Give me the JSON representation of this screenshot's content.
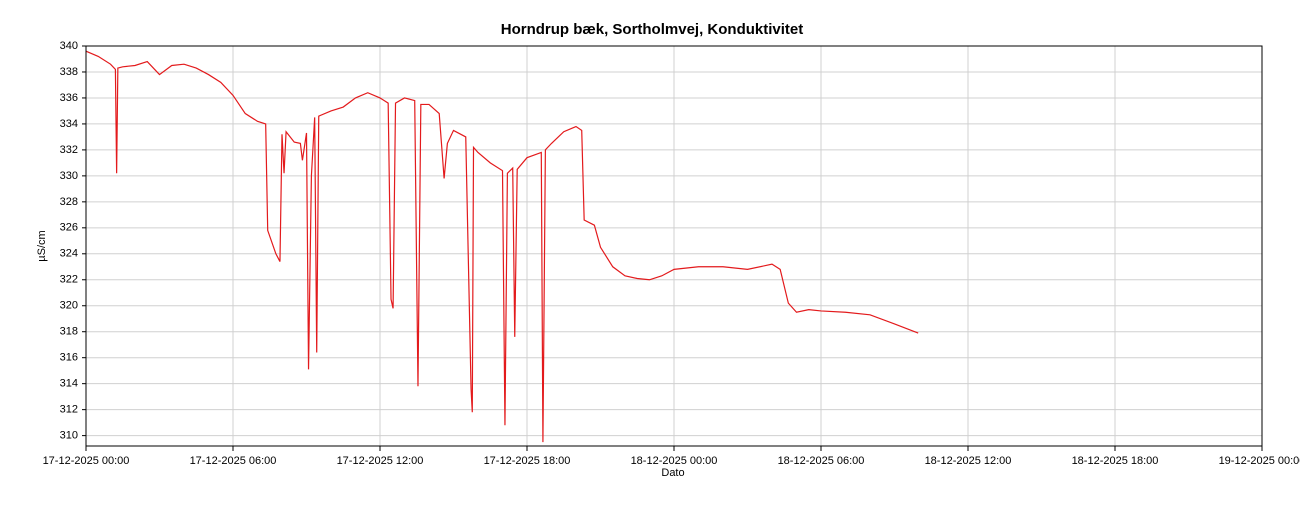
{
  "chart_data": {
    "type": "line",
    "title": "Horndrup bæk, Sortholmvej, Konduktivitet",
    "x_label": "Dato",
    "y_label": "µS/cm",
    "color": "#e31a1c",
    "grid": true,
    "xlim": [
      "17-12-2025 00:00",
      "19-12-2025 00:00"
    ],
    "xticks": [
      "17-12-2025 00:00",
      "17-12-2025 06:00",
      "17-12-2025 12:00",
      "17-12-2025 18:00",
      "18-12-2025 00:00",
      "18-12-2025 06:00",
      "18-12-2025 12:00",
      "18-12-2025 18:00",
      "19-12-2025 00:00"
    ],
    "ylim": [
      309.2,
      340
    ],
    "yticks": [
      310,
      312,
      314,
      316,
      318,
      320,
      322,
      324,
      326,
      328,
      330,
      332,
      334,
      336,
      338,
      340
    ],
    "x": [
      "17-12-2025 00:00",
      "17-12-2025 00:30",
      "17-12-2025 01:00",
      "17-12-2025 01:12",
      "17-12-2025 01:15",
      "17-12-2025 01:18",
      "17-12-2025 01:30",
      "17-12-2025 02:00",
      "17-12-2025 02:30",
      "17-12-2025 03:00",
      "17-12-2025 03:30",
      "17-12-2025 04:00",
      "17-12-2025 04:30",
      "17-12-2025 05:00",
      "17-12-2025 05:30",
      "17-12-2025 06:00",
      "17-12-2025 06:30",
      "17-12-2025 07:00",
      "17-12-2025 07:20",
      "17-12-2025 07:25",
      "17-12-2025 07:45",
      "17-12-2025 07:55",
      "17-12-2025 08:00",
      "17-12-2025 08:05",
      "17-12-2025 08:10",
      "17-12-2025 08:30",
      "17-12-2025 08:45",
      "17-12-2025 08:50",
      "17-12-2025 09:00",
      "17-12-2025 09:05",
      "17-12-2025 09:12",
      "17-12-2025 09:20",
      "17-12-2025 09:25",
      "17-12-2025 09:30",
      "17-12-2025 10:00",
      "17-12-2025 10:30",
      "17-12-2025 11:00",
      "17-12-2025 11:30",
      "17-12-2025 12:00",
      "17-12-2025 12:20",
      "17-12-2025 12:27",
      "17-12-2025 12:32",
      "17-12-2025 12:38",
      "17-12-2025 13:00",
      "17-12-2025 13:25",
      "17-12-2025 13:33",
      "17-12-2025 13:40",
      "17-12-2025 14:00",
      "17-12-2025 14:25",
      "17-12-2025 14:37",
      "17-12-2025 14:45",
      "17-12-2025 15:00",
      "17-12-2025 15:30",
      "17-12-2025 15:43",
      "17-12-2025 15:46",
      "17-12-2025 15:49",
      "17-12-2025 16:00",
      "17-12-2025 16:30",
      "17-12-2025 17:00",
      "17-12-2025 17:06",
      "17-12-2025 17:12",
      "17-12-2025 17:25",
      "17-12-2025 17:30",
      "17-12-2025 17:36",
      "17-12-2025 18:00",
      "17-12-2025 18:35",
      "17-12-2025 18:39",
      "17-12-2025 18:45",
      "17-12-2025 19:00",
      "17-12-2025 19:30",
      "17-12-2025 20:00",
      "17-12-2025 20:14",
      "17-12-2025 20:20",
      "17-12-2025 20:45",
      "17-12-2025 21:00",
      "17-12-2025 21:30",
      "17-12-2025 22:00",
      "17-12-2025 22:30",
      "17-12-2025 23:00",
      "17-12-2025 23:30",
      "18-12-2025 00:00",
      "18-12-2025 01:00",
      "18-12-2025 02:00",
      "18-12-2025 03:00",
      "18-12-2025 04:00",
      "18-12-2025 04:20",
      "18-12-2025 04:40",
      "18-12-2025 05:00",
      "18-12-2025 05:30",
      "18-12-2025 06:00",
      "18-12-2025 07:00",
      "18-12-2025 08:00",
      "18-12-2025 09:00",
      "18-12-2025 09:58"
    ],
    "values": [
      339.6,
      339.2,
      338.6,
      338.2,
      330.2,
      338.3,
      338.4,
      338.5,
      338.8,
      337.8,
      338.5,
      338.6,
      338.3,
      337.8,
      337.2,
      336.2,
      334.8,
      334.2,
      334.0,
      325.8,
      324.0,
      323.4,
      333.2,
      330.2,
      333.4,
      332.6,
      332.5,
      331.2,
      333.3,
      315.1,
      330.0,
      334.5,
      316.4,
      334.6,
      335.0,
      335.3,
      336.0,
      336.4,
      336.0,
      335.6,
      320.5,
      319.8,
      335.6,
      336.0,
      335.8,
      313.8,
      335.5,
      335.5,
      334.8,
      329.8,
      332.5,
      333.5,
      333.0,
      313.6,
      311.8,
      332.2,
      331.8,
      331.0,
      330.4,
      310.8,
      330.2,
      330.6,
      317.6,
      330.5,
      331.4,
      331.8,
      309.5,
      332.0,
      332.5,
      333.4,
      333.8,
      333.5,
      326.6,
      326.2,
      324.5,
      323.0,
      322.3,
      322.1,
      322.0,
      322.3,
      322.8,
      323.0,
      323.0,
      322.8,
      323.2,
      322.8,
      320.2,
      319.5,
      319.7,
      319.6,
      319.5,
      319.3,
      318.6,
      317.9
    ]
  }
}
